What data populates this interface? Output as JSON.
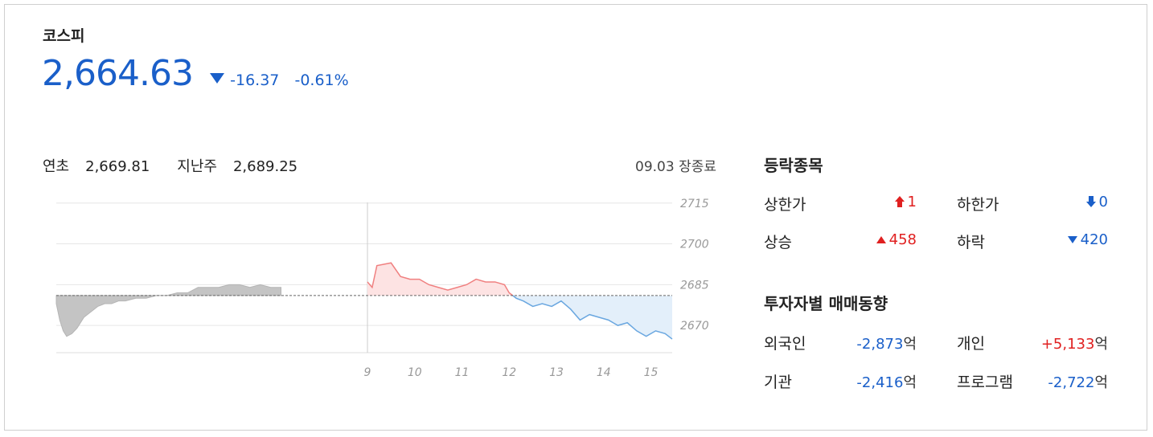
{
  "index": {
    "name": "코스피",
    "price": "2,664.63",
    "change": "-16.37",
    "change_pct": "-0.61%",
    "direction": "down",
    "color_down": "#1a5fc9",
    "color_up": "#e02020"
  },
  "stats": {
    "ytd_label": "연초",
    "ytd_value": "2,669.81",
    "lastweek_label": "지난주",
    "lastweek_value": "2,689.25",
    "date": "09.03",
    "status": "장종료"
  },
  "chart_data": {
    "type": "area",
    "yticks": [
      "2715",
      "2700",
      "2685",
      "2670"
    ],
    "xticks": [
      "9",
      "10",
      "11",
      "12",
      "13",
      "14",
      "15"
    ],
    "ylim": [
      2660,
      2717
    ],
    "previous_close": 2681,
    "grid": true,
    "series": [
      {
        "segment": "previous-day",
        "x": [
          0,
          0.1,
          0.2,
          0.3,
          0.45,
          0.6,
          0.8,
          1.0,
          1.2,
          1.4,
          1.6,
          1.8,
          2.0,
          2.3,
          2.6,
          2.9,
          3.2,
          3.5,
          3.8,
          4.1,
          4.4,
          4.7,
          5.0,
          5.3,
          5.6,
          5.9,
          6.2,
          6.5
        ],
        "values": [
          2678,
          2672,
          2668,
          2666,
          2667,
          2669,
          2673,
          2675,
          2677,
          2678,
          2678,
          2679,
          2679,
          2680,
          2680,
          2681,
          2681,
          2682,
          2682,
          2684,
          2684,
          2684,
          2685,
          2685,
          2684,
          2685,
          2684,
          2684
        ]
      },
      {
        "segment": "today",
        "x": [
          9.0,
          9.1,
          9.2,
          9.5,
          9.7,
          9.9,
          10.1,
          10.3,
          10.5,
          10.7,
          10.9,
          11.1,
          11.3,
          11.5,
          11.7,
          11.9,
          12.0,
          12.15,
          12.3,
          12.5,
          12.7,
          12.9,
          13.1,
          13.3,
          13.5,
          13.7,
          13.9,
          14.1,
          14.3,
          14.5,
          14.7,
          14.9,
          15.1,
          15.3,
          15.45
        ],
        "values": [
          2686,
          2684,
          2692,
          2693,
          2688,
          2687,
          2687,
          2685,
          2684,
          2683,
          2684,
          2685,
          2687,
          2686,
          2686,
          2685,
          2682,
          2680,
          2679,
          2677,
          2678,
          2677,
          2679,
          2676,
          2672,
          2674,
          2673,
          2672,
          2670,
          2671,
          2668,
          2666,
          2668,
          2667,
          2665
        ]
      }
    ]
  },
  "breadth": {
    "title": "등락종목",
    "upper_limit_label": "상한가",
    "upper_limit_value": "1",
    "lower_limit_label": "하한가",
    "lower_limit_value": "0",
    "rise_label": "상승",
    "rise_value": "458",
    "fall_label": "하락",
    "fall_value": "420"
  },
  "investors": {
    "title": "투자자별 매매동향",
    "unit": "억",
    "foreign_label": "외국인",
    "foreign_value": "-2,873",
    "individual_label": "개인",
    "individual_value": "+5,133",
    "institution_label": "기관",
    "institution_value": "-2,416",
    "program_label": "프로그램",
    "program_value": "-2,722"
  }
}
